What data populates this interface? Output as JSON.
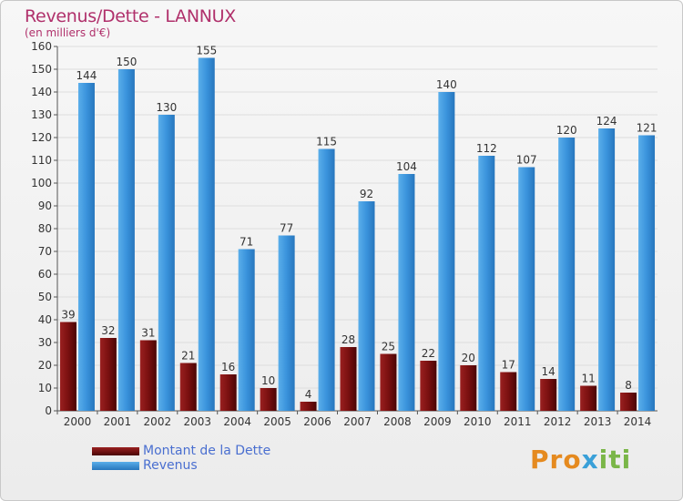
{
  "title": "Revenus/Dette - LANNUX",
  "subtitle": "(en milliers d'€)",
  "logo": {
    "text": "Proxiti",
    "letters": [
      "P",
      "r",
      "o",
      "x",
      "i",
      "t",
      "i"
    ],
    "colors": [
      "#e58a1f",
      "#e58a1f",
      "#e58a1f",
      "#3aa0d8",
      "#7ab648",
      "#7ab648",
      "#7ab648"
    ]
  },
  "colors": {
    "dette": "#7a1010",
    "revenus": "#3a93dc",
    "axis_text": "#333333",
    "grid": "#dddddd"
  },
  "chart_data": {
    "type": "bar",
    "title": "Revenus/Dette - LANNUX",
    "ylabel": "(en milliers d'€)",
    "xlabel": "",
    "categories": [
      "2000",
      "2001",
      "2002",
      "2003",
      "2004",
      "2005",
      "2006",
      "2007",
      "2008",
      "2009",
      "2010",
      "2011",
      "2012",
      "2013",
      "2014"
    ],
    "ylim": [
      0,
      160
    ],
    "yticks": [
      0,
      10,
      20,
      30,
      40,
      50,
      60,
      70,
      80,
      90,
      100,
      110,
      120,
      130,
      140,
      150,
      160
    ],
    "grid": true,
    "legend_position": "bottom-left",
    "series": [
      {
        "name": "Montant de la Dette",
        "color": "#7a1010",
        "values": [
          39,
          32,
          31,
          21,
          16,
          10,
          4,
          28,
          25,
          22,
          20,
          17,
          14,
          11,
          8
        ]
      },
      {
        "name": "Revenus",
        "color": "#3a93dc",
        "values": [
          144,
          150,
          130,
          155,
          71,
          77,
          115,
          92,
          104,
          140,
          112,
          107,
          120,
          124,
          121
        ]
      }
    ]
  }
}
